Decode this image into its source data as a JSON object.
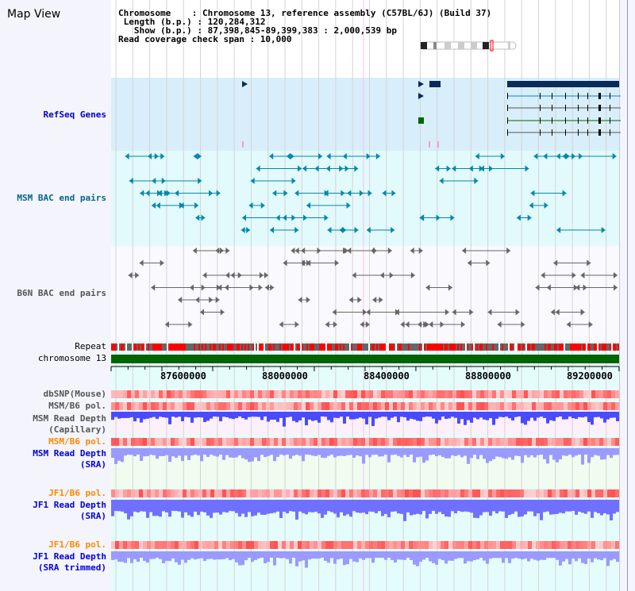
{
  "title": "Map View",
  "info": {
    "chromosome_label": "Chromosome    : ",
    "chromosome": "Chromosome 13, reference assembly (C57BL/6J) (Build 37)",
    "length_label": "Length (b.p.) : ",
    "length": "120,284,312",
    "show_label": "  Show (b.p.) : ",
    "show": "87,398,845-89,399,383 : 2,000,539 bp",
    "span_label": "Read coverage check span : ",
    "span": "10,000"
  },
  "tracks": {
    "refseq": "RefSeq Genes",
    "msm_bac": "MSM BAC end pairs",
    "b6n_bac": "B6N BAC end pairs",
    "repeat": "Repeat",
    "chromosome": "chromosome 13",
    "dbsnp": "dbSNP(Mouse)",
    "msm_b6_pol_1": "MSM/B6 pol.",
    "msm_depth_cap_1": "MSM Read Depth",
    "msm_depth_cap_2": "(Capillary)",
    "msm_b6_pol_2": "MSM/B6 pol.",
    "msm_depth_sra_1": "MSM Read Depth",
    "msm_depth_sra_2": "(SRA)",
    "jf1_pol_1": "JF1/B6 pol.",
    "jf1_depth_1": "JF1 Read Depth",
    "jf1_depth_2": "(SRA)",
    "jf1_pol_2": "JF1/B6 pol.",
    "jf1_trim_1": "JF1 Read Depth",
    "jf1_trim_2": "(SRA trimmed)"
  },
  "axis": [
    "87600000",
    "88000000",
    "88400000",
    "88800000",
    "89200000"
  ],
  "colors": {
    "refseq": "#0000cc",
    "msm": "#006688",
    "gray": "#555555",
    "orange": "#ff8800",
    "blue": "#0000dd",
    "green": "#006400"
  }
}
